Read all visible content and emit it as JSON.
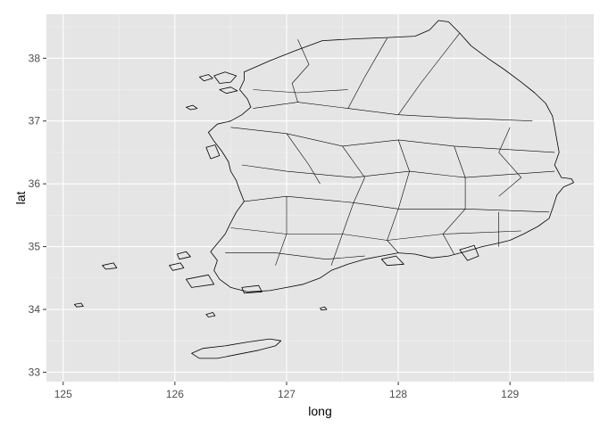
{
  "chart_data": {
    "type": "map",
    "xlabel": "long",
    "ylabel": "lat",
    "xlim": [
      124.85,
      129.75
    ],
    "ylim": [
      32.85,
      38.7
    ],
    "x_ticks": [
      125,
      126,
      127,
      128,
      129
    ],
    "y_ticks": [
      33,
      34,
      35,
      36,
      37,
      38
    ],
    "x_tick_labels": [
      "125",
      "126",
      "127",
      "128",
      "129"
    ],
    "y_tick_labels": [
      "33",
      "34",
      "35",
      "36",
      "37",
      "38"
    ],
    "grid": true,
    "panel_background": "#e5e5e5",
    "grid_color": "#ffffff",
    "outline_color": "#000000",
    "outlines": [
      {
        "name": "mainland",
        "points": [
          [
            126.62,
            37.78
          ],
          [
            126.85,
            37.96
          ],
          [
            127.08,
            38.12
          ],
          [
            127.32,
            38.28
          ],
          [
            127.62,
            38.31
          ],
          [
            127.9,
            38.33
          ],
          [
            128.15,
            38.35
          ],
          [
            128.28,
            38.45
          ],
          [
            128.36,
            38.6
          ],
          [
            128.45,
            38.58
          ],
          [
            128.55,
            38.4
          ],
          [
            128.65,
            38.2
          ],
          [
            128.8,
            38.0
          ],
          [
            128.95,
            37.82
          ],
          [
            129.1,
            37.62
          ],
          [
            129.22,
            37.45
          ],
          [
            129.32,
            37.28
          ],
          [
            129.38,
            37.08
          ],
          [
            129.4,
            36.9
          ],
          [
            129.42,
            36.7
          ],
          [
            129.44,
            36.5
          ],
          [
            129.4,
            36.3
          ],
          [
            129.46,
            36.1
          ],
          [
            129.55,
            36.08
          ],
          [
            129.57,
            36.02
          ],
          [
            129.48,
            35.95
          ],
          [
            129.42,
            35.82
          ],
          [
            129.38,
            35.6
          ],
          [
            129.35,
            35.45
          ],
          [
            129.25,
            35.32
          ],
          [
            129.12,
            35.2
          ],
          [
            129.0,
            35.1
          ],
          [
            128.88,
            35.05
          ],
          [
            128.75,
            35.0
          ],
          [
            128.6,
            34.92
          ],
          [
            128.45,
            34.85
          ],
          [
            128.3,
            34.82
          ],
          [
            128.15,
            34.88
          ],
          [
            128.0,
            34.9
          ],
          [
            127.85,
            34.85
          ],
          [
            127.7,
            34.8
          ],
          [
            127.55,
            34.72
          ],
          [
            127.4,
            34.62
          ],
          [
            127.3,
            34.5
          ],
          [
            127.15,
            34.4
          ],
          [
            127.0,
            34.35
          ],
          [
            126.85,
            34.3
          ],
          [
            126.65,
            34.28
          ],
          [
            126.5,
            34.35
          ],
          [
            126.4,
            34.48
          ],
          [
            126.35,
            34.62
          ],
          [
            126.38,
            34.78
          ],
          [
            126.32,
            34.92
          ],
          [
            126.38,
            35.05
          ],
          [
            126.45,
            35.2
          ],
          [
            126.5,
            35.38
          ],
          [
            126.55,
            35.55
          ],
          [
            126.62,
            35.72
          ],
          [
            126.58,
            35.9
          ],
          [
            126.55,
            36.05
          ],
          [
            126.5,
            36.2
          ],
          [
            126.48,
            36.35
          ],
          [
            126.42,
            36.52
          ],
          [
            126.35,
            36.68
          ],
          [
            126.3,
            36.82
          ],
          [
            126.38,
            36.95
          ],
          [
            126.5,
            37.0
          ],
          [
            126.6,
            37.1
          ],
          [
            126.68,
            37.22
          ],
          [
            126.65,
            37.35
          ],
          [
            126.58,
            37.5
          ],
          [
            126.62,
            37.65
          ],
          [
            126.62,
            37.78
          ]
        ]
      },
      {
        "name": "jeju",
        "points": [
          [
            126.15,
            33.3
          ],
          [
            126.25,
            33.38
          ],
          [
            126.45,
            33.42
          ],
          [
            126.65,
            33.48
          ],
          [
            126.85,
            33.53
          ],
          [
            126.95,
            33.5
          ],
          [
            126.9,
            33.42
          ],
          [
            126.75,
            33.35
          ],
          [
            126.55,
            33.28
          ],
          [
            126.38,
            33.22
          ],
          [
            126.22,
            33.22
          ],
          [
            126.15,
            33.3
          ]
        ]
      },
      {
        "name": "ganghwa",
        "points": [
          [
            126.35,
            37.72
          ],
          [
            126.45,
            37.78
          ],
          [
            126.55,
            37.72
          ],
          [
            126.5,
            37.62
          ],
          [
            126.4,
            37.6
          ],
          [
            126.35,
            37.72
          ]
        ]
      },
      {
        "name": "ganghwa-west",
        "points": [
          [
            126.22,
            37.7
          ],
          [
            126.3,
            37.74
          ],
          [
            126.34,
            37.68
          ],
          [
            126.26,
            37.64
          ],
          [
            126.22,
            37.7
          ]
        ]
      },
      {
        "name": "yeongjong",
        "points": [
          [
            126.4,
            37.5
          ],
          [
            126.5,
            37.54
          ],
          [
            126.56,
            37.48
          ],
          [
            126.46,
            37.44
          ],
          [
            126.4,
            37.5
          ]
        ]
      },
      {
        "name": "anmyeon",
        "points": [
          [
            126.28,
            36.58
          ],
          [
            126.36,
            36.62
          ],
          [
            126.4,
            36.45
          ],
          [
            126.32,
            36.4
          ],
          [
            126.28,
            36.58
          ]
        ]
      },
      {
        "name": "geoje",
        "points": [
          [
            128.55,
            34.95
          ],
          [
            128.68,
            35.02
          ],
          [
            128.72,
            34.85
          ],
          [
            128.62,
            34.78
          ],
          [
            128.55,
            34.95
          ]
        ]
      },
      {
        "name": "namhae",
        "points": [
          [
            127.85,
            34.8
          ],
          [
            127.98,
            34.85
          ],
          [
            128.05,
            34.72
          ],
          [
            127.9,
            34.7
          ],
          [
            127.85,
            34.8
          ]
        ]
      },
      {
        "name": "wando",
        "points": [
          [
            126.6,
            34.35
          ],
          [
            126.75,
            34.38
          ],
          [
            126.78,
            34.28
          ],
          [
            126.62,
            34.26
          ],
          [
            126.6,
            34.35
          ]
        ]
      },
      {
        "name": "jindo",
        "points": [
          [
            126.1,
            34.48
          ],
          [
            126.3,
            34.55
          ],
          [
            126.35,
            34.4
          ],
          [
            126.15,
            34.35
          ],
          [
            126.1,
            34.48
          ]
        ]
      },
      {
        "name": "sinan-1",
        "points": [
          [
            125.95,
            34.7
          ],
          [
            126.05,
            34.74
          ],
          [
            126.08,
            34.66
          ],
          [
            125.98,
            34.62
          ],
          [
            125.95,
            34.7
          ]
        ]
      },
      {
        "name": "sinan-2",
        "points": [
          [
            126.02,
            34.88
          ],
          [
            126.1,
            34.92
          ],
          [
            126.14,
            34.84
          ],
          [
            126.04,
            34.8
          ],
          [
            126.02,
            34.88
          ]
        ]
      },
      {
        "name": "heuksan",
        "points": [
          [
            125.35,
            34.7
          ],
          [
            125.45,
            34.74
          ],
          [
            125.48,
            34.66
          ],
          [
            125.38,
            34.64
          ],
          [
            125.35,
            34.7
          ]
        ]
      },
      {
        "name": "gageo",
        "points": [
          [
            125.1,
            34.08
          ],
          [
            125.16,
            34.1
          ],
          [
            125.18,
            34.05
          ],
          [
            125.12,
            34.04
          ],
          [
            125.1,
            34.08
          ]
        ]
      },
      {
        "name": "chuja",
        "points": [
          [
            126.28,
            33.92
          ],
          [
            126.34,
            33.95
          ],
          [
            126.36,
            33.9
          ],
          [
            126.3,
            33.88
          ],
          [
            126.28,
            33.92
          ]
        ]
      },
      {
        "name": "geomun",
        "points": [
          [
            127.3,
            34.02
          ],
          [
            127.34,
            34.04
          ],
          [
            127.36,
            34.0
          ],
          [
            127.31,
            33.99
          ],
          [
            127.3,
            34.02
          ]
        ]
      },
      {
        "name": "deokjeok",
        "points": [
          [
            126.1,
            37.22
          ],
          [
            126.16,
            37.25
          ],
          [
            126.2,
            37.2
          ],
          [
            126.14,
            37.18
          ],
          [
            126.1,
            37.22
          ]
        ]
      }
    ],
    "boundaries": [
      [
        [
          127.1,
          38.3
        ],
        [
          127.2,
          37.9
        ],
        [
          127.05,
          37.6
        ],
        [
          127.1,
          37.3
        ]
      ],
      [
        [
          126.7,
          37.2
        ],
        [
          127.1,
          37.3
        ],
        [
          127.55,
          37.2
        ],
        [
          128.0,
          37.1
        ],
        [
          128.5,
          37.05
        ],
        [
          129.2,
          37.0
        ]
      ],
      [
        [
          127.55,
          37.2
        ],
        [
          127.7,
          37.7
        ],
        [
          127.9,
          38.32
        ]
      ],
      [
        [
          128.0,
          37.1
        ],
        [
          128.2,
          37.6
        ],
        [
          128.55,
          38.4
        ]
      ],
      [
        [
          126.5,
          36.9
        ],
        [
          127.0,
          36.8
        ],
        [
          127.5,
          36.6
        ],
        [
          128.0,
          36.7
        ],
        [
          128.5,
          36.6
        ],
        [
          129.4,
          36.5
        ]
      ],
      [
        [
          126.6,
          36.3
        ],
        [
          127.0,
          36.2
        ],
        [
          127.6,
          36.1
        ],
        [
          128.1,
          36.2
        ],
        [
          128.6,
          36.1
        ],
        [
          129.4,
          36.2
        ]
      ],
      [
        [
          127.0,
          36.8
        ],
        [
          127.2,
          36.3
        ],
        [
          127.3,
          36.0
        ]
      ],
      [
        [
          127.5,
          36.6
        ],
        [
          127.7,
          36.1
        ],
        [
          127.6,
          35.7
        ]
      ],
      [
        [
          128.0,
          36.7
        ],
        [
          128.1,
          36.2
        ],
        [
          128.0,
          35.6
        ]
      ],
      [
        [
          128.5,
          36.6
        ],
        [
          128.6,
          36.1
        ],
        [
          128.6,
          35.6
        ]
      ],
      [
        [
          126.62,
          35.72
        ],
        [
          127.0,
          35.8
        ],
        [
          127.6,
          35.7
        ],
        [
          128.0,
          35.6
        ],
        [
          128.6,
          35.6
        ],
        [
          129.35,
          35.55
        ]
      ],
      [
        [
          126.5,
          35.3
        ],
        [
          127.0,
          35.2
        ],
        [
          127.5,
          35.2
        ],
        [
          127.9,
          35.1
        ],
        [
          128.4,
          35.2
        ],
        [
          129.1,
          35.25
        ]
      ],
      [
        [
          127.0,
          35.8
        ],
        [
          127.0,
          35.2
        ],
        [
          126.9,
          34.7
        ]
      ],
      [
        [
          127.6,
          35.7
        ],
        [
          127.5,
          35.2
        ],
        [
          127.4,
          34.7
        ]
      ],
      [
        [
          128.0,
          35.6
        ],
        [
          127.9,
          35.1
        ],
        [
          128.0,
          34.9
        ]
      ],
      [
        [
          128.6,
          35.6
        ],
        [
          128.4,
          35.2
        ],
        [
          128.5,
          34.88
        ]
      ],
      [
        [
          126.45,
          34.9
        ],
        [
          126.9,
          34.9
        ],
        [
          127.35,
          34.8
        ],
        [
          127.7,
          34.85
        ]
      ],
      [
        [
          128.9,
          35.55
        ],
        [
          128.9,
          35.0
        ]
      ],
      [
        [
          129.0,
          36.9
        ],
        [
          128.9,
          36.5
        ],
        [
          129.1,
          36.1
        ],
        [
          128.9,
          35.8
        ]
      ],
      [
        [
          126.7,
          37.5
        ],
        [
          127.1,
          37.45
        ],
        [
          127.55,
          37.5
        ]
      ]
    ]
  }
}
